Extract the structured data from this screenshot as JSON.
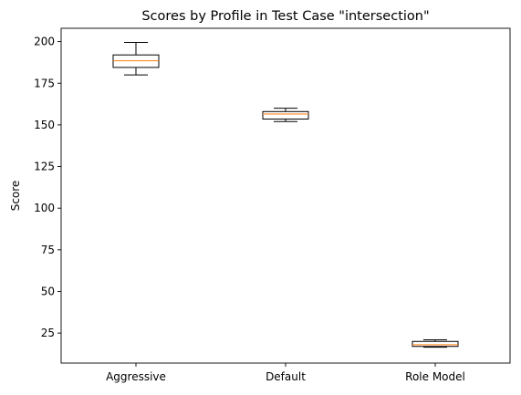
{
  "chart_data": {
    "type": "box",
    "title": "Scores by Profile in Test Case \"intersection\"",
    "xlabel": "",
    "ylabel": "Score",
    "ylim": [
      7,
      208
    ],
    "yticks": [
      25,
      50,
      75,
      100,
      125,
      150,
      175,
      200
    ],
    "categories": [
      "Aggressive",
      "Default",
      "Role Model"
    ],
    "boxes": [
      {
        "category": "Aggressive",
        "whisker_low": 180,
        "q1": 184.5,
        "median": 188.5,
        "q3": 192,
        "whisker_high": 199.5
      },
      {
        "category": "Default",
        "whisker_low": 152,
        "q1": 153.5,
        "median": 156.5,
        "q3": 158,
        "whisker_high": 160
      },
      {
        "category": "Role Model",
        "whisker_low": 16.5,
        "q1": 17,
        "median": 18,
        "q3": 20,
        "whisker_high": 21
      }
    ],
    "box_color": "#000000",
    "median_color": "#ff7f0e",
    "grid": false,
    "legend": "none"
  }
}
